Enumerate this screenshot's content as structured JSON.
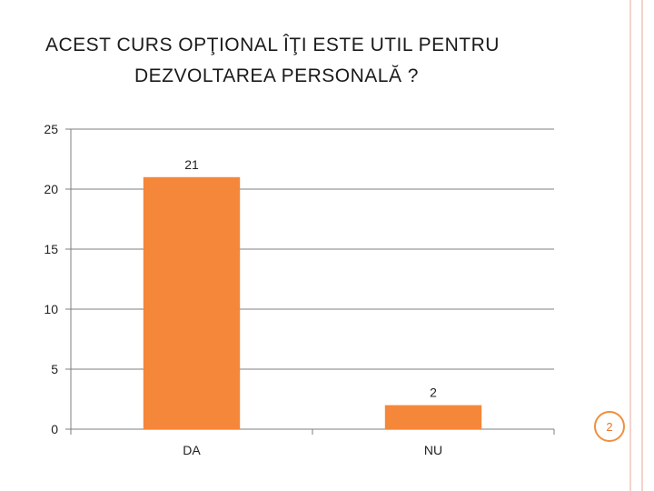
{
  "title": {
    "line1": "ACEST CURS OPŢIONAL ÎŢI ESTE UTIL PENTRU",
    "line2": "DEZVOLTAREA PERSONALĂ ?"
  },
  "slide_number": "2",
  "colors": {
    "bar": "#f5873a",
    "axis": "#7f7f7f",
    "grid": "#7f7f7f",
    "accent_lines": "#f3d3cc"
  },
  "chart_data": {
    "type": "bar",
    "title": "ACEST CURS OPŢIONAL ÎŢI ESTE UTIL PENTRU DEZVOLTAREA PERSONALĂ ?",
    "categories": [
      "DA",
      "NU"
    ],
    "values": [
      21,
      2
    ],
    "data_labels": [
      "21",
      "2"
    ],
    "xlabel": "",
    "ylabel": "",
    "ylim": [
      0,
      25
    ],
    "yticks": [
      0,
      5,
      10,
      15,
      20,
      25
    ],
    "grid": true,
    "legend": "none"
  }
}
